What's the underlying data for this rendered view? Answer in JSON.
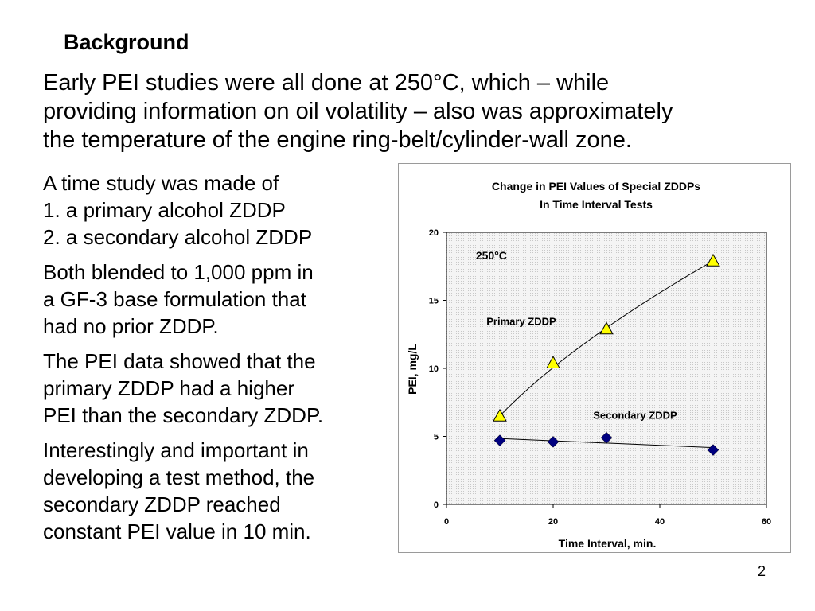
{
  "slide": {
    "heading": "Background",
    "intro_lines": [
      "Early PEI studies were all done at 250°C, which – while",
      "providing information on oil volatility – also was approximately",
      "the temperature of the engine ring-belt/cylinder-wall zone."
    ],
    "paragraphs": [
      [
        "A time study was made of",
        "1. a primary alcohol ZDDP",
        "2. a secondary alcohol ZDDP"
      ],
      [
        "Both blended to 1,000 ppm in",
        "a GF-3 base formulation that",
        "had no prior ZDDP."
      ],
      [
        "The PEI data showed that the",
        "primary ZDDP had a higher",
        "PEI than the secondary ZDDP."
      ],
      [
        "Interestingly and important in",
        "developing a test method, the",
        "secondary ZDDP reached",
        "constant PEI value in 10 min."
      ]
    ],
    "page_number": "2"
  },
  "chart_data": {
    "type": "scatter",
    "title_lines": [
      "Change in PEI Values of Special ZDDPs",
      "In Time Interval Tests"
    ],
    "xlabel": "Time Interval, min.",
    "ylabel": "PEI, mg/L",
    "xlim": [
      0,
      60
    ],
    "ylim": [
      0,
      20
    ],
    "xticks": [
      0,
      20,
      40,
      60
    ],
    "yticks": [
      0,
      5,
      10,
      15,
      20
    ],
    "annotation": "250°C",
    "grid": "dotted shaded plot area",
    "series": [
      {
        "name": "Primary ZDDP",
        "marker": "triangle",
        "color": "#ffff00",
        "x": [
          10,
          20,
          30,
          50
        ],
        "y": [
          6.5,
          10.4,
          12.9,
          17.9
        ],
        "trend": "curve"
      },
      {
        "name": "Secondary ZDDP",
        "marker": "diamond",
        "color": "#000080",
        "x": [
          10,
          20,
          30,
          50
        ],
        "y": [
          4.7,
          4.6,
          4.9,
          4.0
        ],
        "trend": "line"
      }
    ]
  }
}
